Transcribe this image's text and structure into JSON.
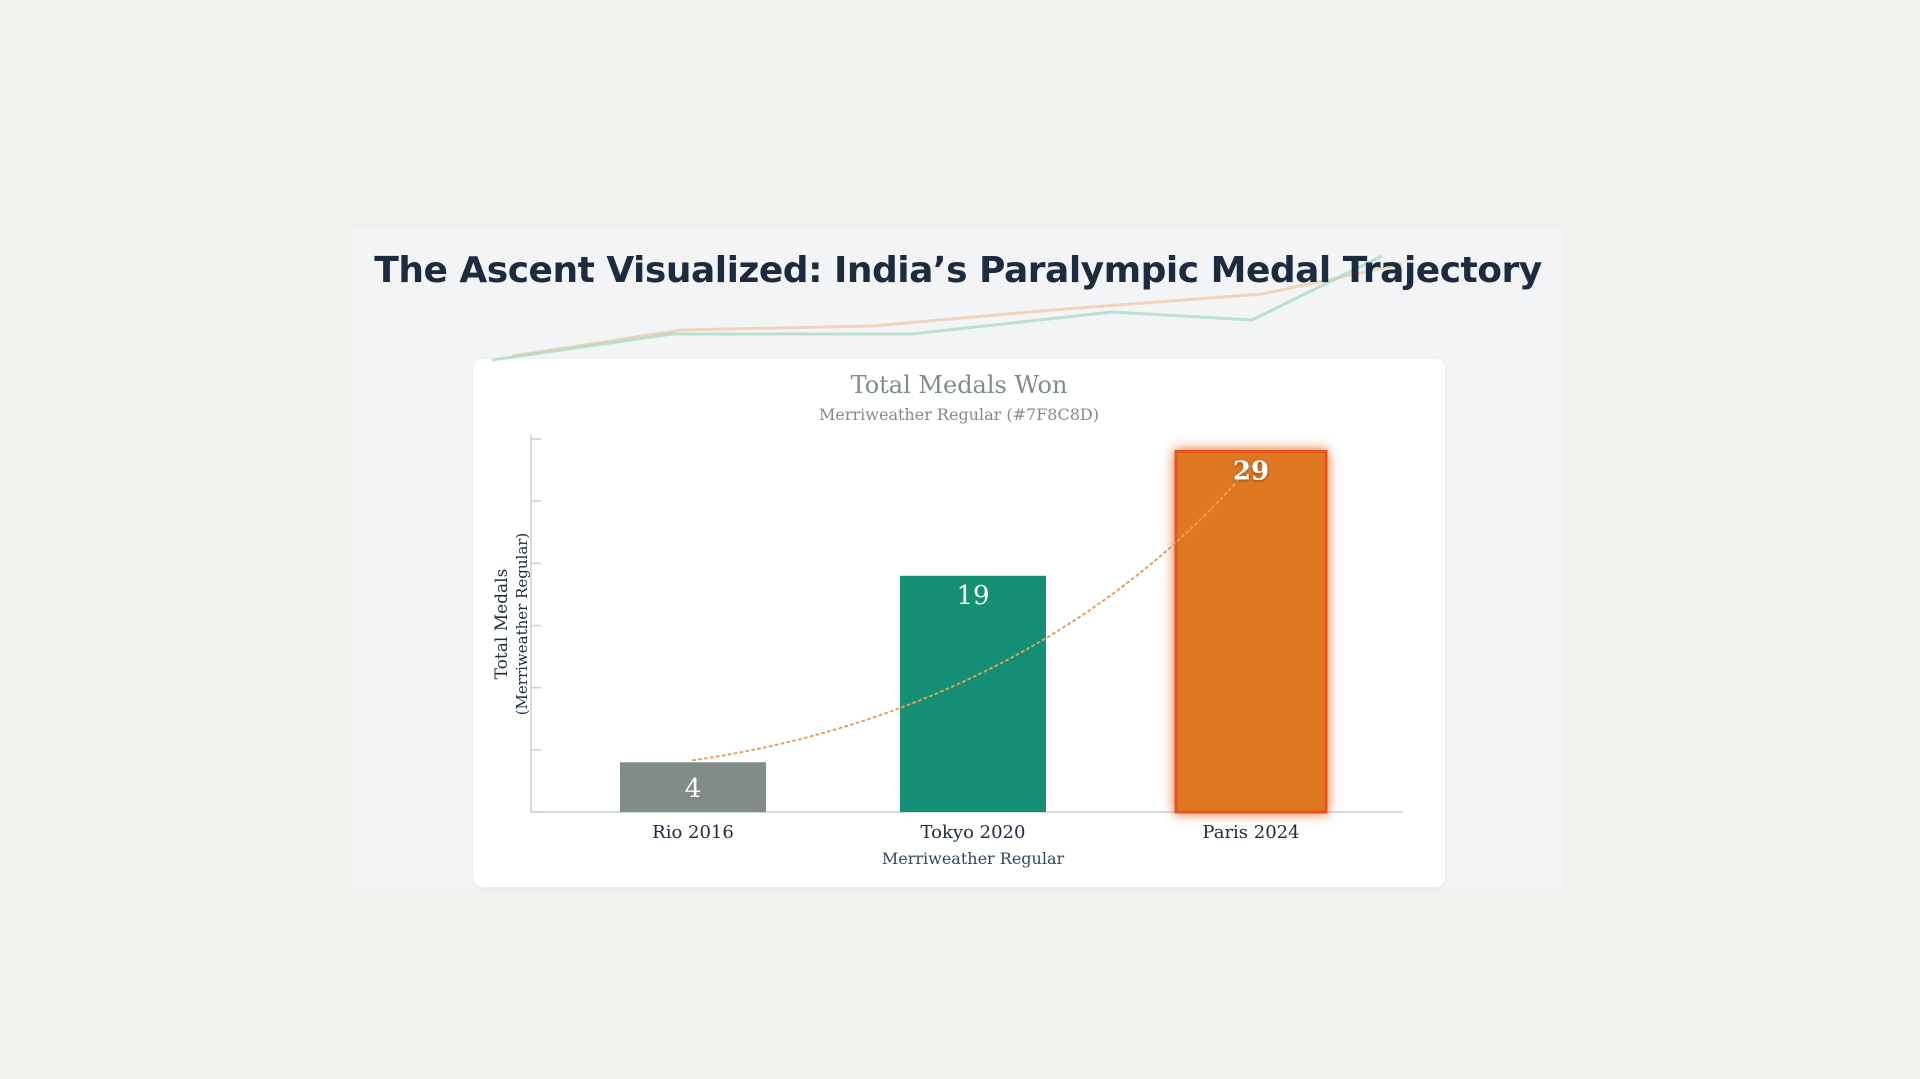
{
  "slide": {
    "title": "The Ascent Visualized: India’s Paralympic Medal Trajectory"
  },
  "colors": {
    "background": "#f2f1ed",
    "title": "#1c2b3d",
    "rio": "#808b8a",
    "tokyo": "#148f74",
    "paris": "#e07820",
    "paris_border": "#e8541a",
    "trend": "#e0a060"
  },
  "chart_data": {
    "type": "bar",
    "title": "Total Medals Won",
    "subtitle": "Merriweather Regular (#7F8C8D)",
    "ylabel": "Total Medals",
    "ylabel_sub": "(Merriweather Regular)",
    "xlabel": "Merriweather Regular",
    "categories": [
      "Rio 2016",
      "Tokyo 2020",
      "Paris 2024"
    ],
    "values": [
      4,
      19,
      29
    ],
    "ylim": [
      0,
      30
    ],
    "yticks": [
      0,
      5,
      10,
      15,
      20,
      25,
      30
    ],
    "grid": false,
    "trendline": "dotted-curve",
    "highlight": "Paris 2024"
  }
}
